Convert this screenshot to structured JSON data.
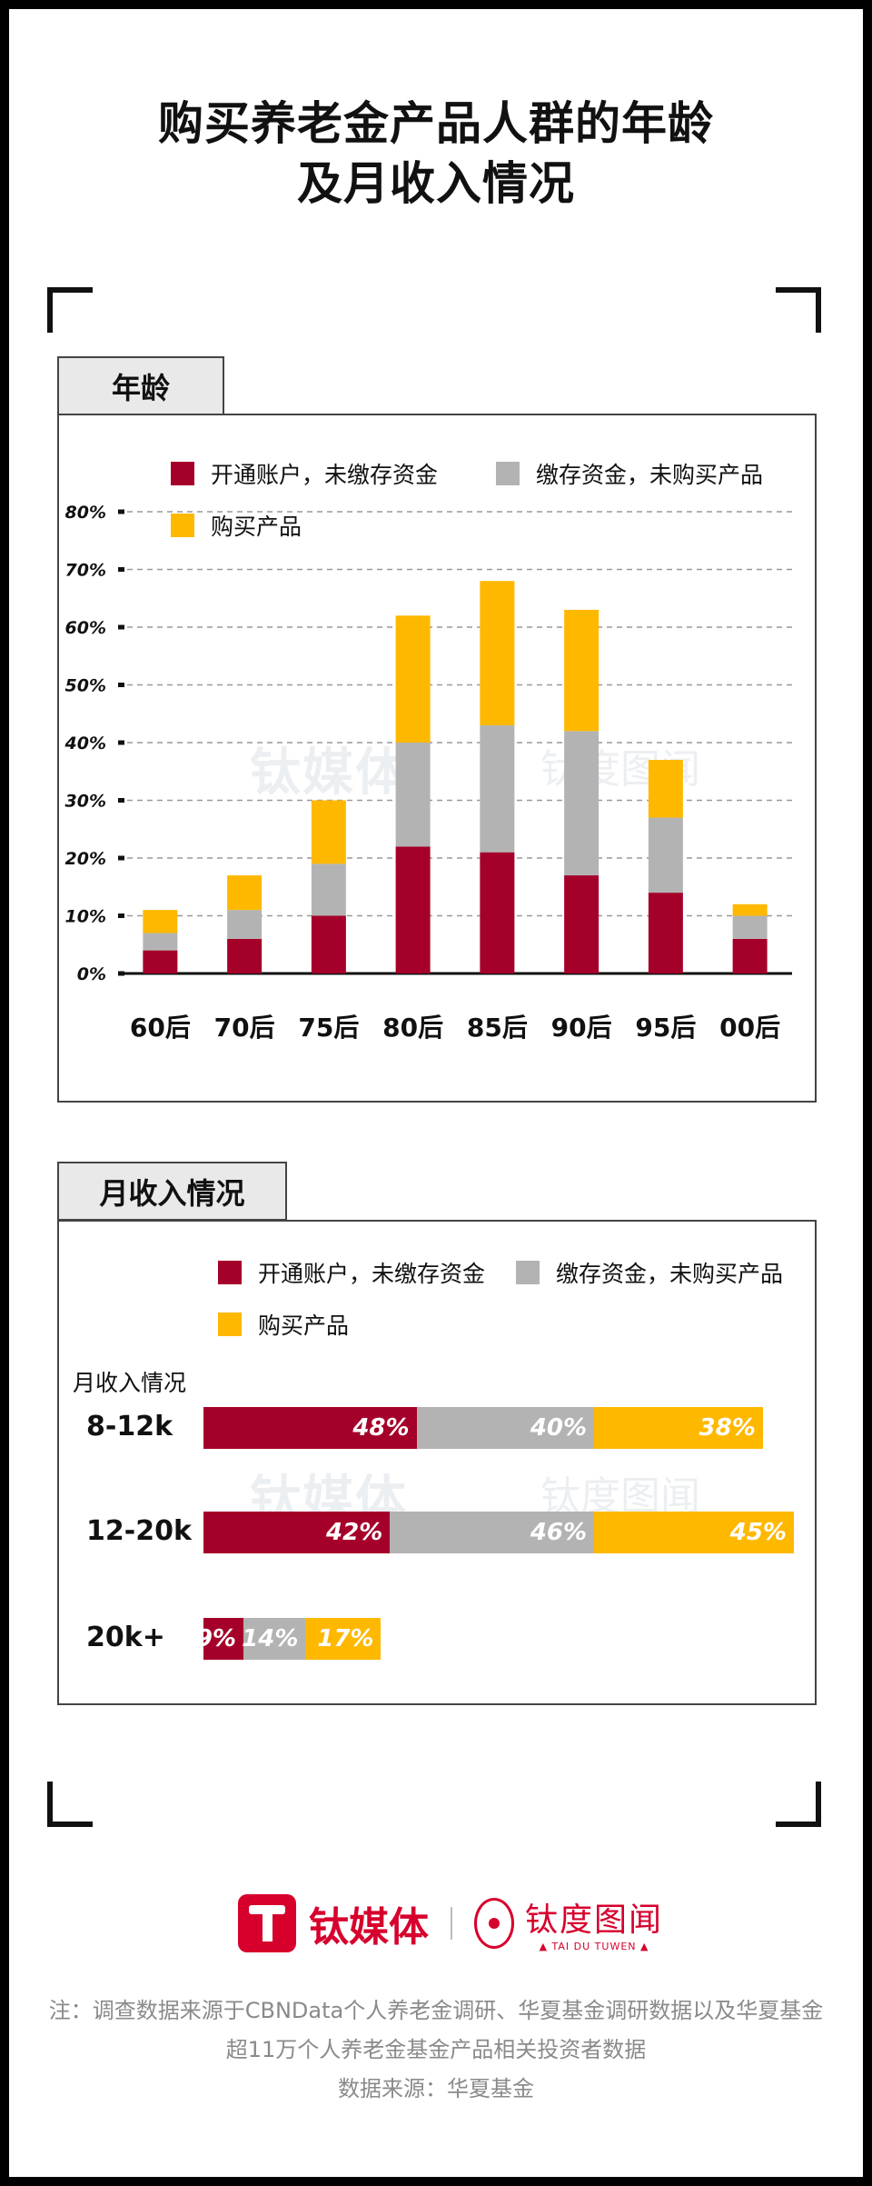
{
  "title_line1": "购买养老金产品人群的年龄",
  "title_line2": "及月收入情况",
  "colors": {
    "red": "#a5002a",
    "gray": "#b3b3b3",
    "yellow": "#ffb800"
  },
  "legend": {
    "red": "开通账户，未缴存资金",
    "gray": "缴存资金，未购买产品",
    "yellow": "购买产品"
  },
  "watermark": {
    "brand": "钛媒体",
    "partner": "钛度图闻"
  },
  "age_section": {
    "tab_label": "年龄"
  },
  "income_section": {
    "tab_label": "月收入情况",
    "axis_label": "月收入情况"
  },
  "chart_data": [
    {
      "type": "bar",
      "stacked": true,
      "categories": [
        "60后",
        "70后",
        "75后",
        "80后",
        "85后",
        "90后",
        "95后",
        "00后"
      ],
      "series": [
        {
          "name": "开通账户，未缴存资金",
          "values": [
            4,
            6,
            10,
            22,
            21,
            17,
            14,
            6
          ]
        },
        {
          "name": "缴存资金，未购买产品",
          "values": [
            3,
            5,
            9,
            18,
            22,
            25,
            13,
            4
          ]
        },
        {
          "name": "购买产品",
          "values": [
            4,
            6,
            11,
            22,
            25,
            21,
            10,
            2
          ]
        }
      ],
      "ylim": [
        0,
        80
      ],
      "yticks": [
        "0%",
        "10%",
        "20%",
        "30%",
        "40%",
        "50%",
        "60%",
        "70%",
        "80%"
      ],
      "grid": true,
      "legend_position": "top"
    },
    {
      "type": "bar",
      "orientation": "horizontal",
      "stacked": true,
      "ylabel": "月收入情况",
      "categories": [
        "8-12k",
        "12-20k",
        "20k+"
      ],
      "series": [
        {
          "name": "开通账户，未缴存资金",
          "values": [
            48,
            42,
            9
          ],
          "labels": [
            "48%",
            "42%",
            "9%"
          ]
        },
        {
          "name": "缴存资金，未购买产品",
          "values": [
            40,
            46,
            14
          ],
          "labels": [
            "40%",
            "46%",
            "14%"
          ]
        },
        {
          "name": "购买产品",
          "values": [
            38,
            45,
            17
          ],
          "labels": [
            "38%",
            "45%",
            "17%"
          ]
        }
      ],
      "legend_position": "top"
    }
  ],
  "footer": {
    "brand": "钛媒体",
    "partner": "钛度图闻",
    "partner_sub": "▲ TAI DU TUWEN ▲",
    "note_line1": "注：调查数据来源于CBNData个人养老金调研、华夏基金调研数据以及华夏基金",
    "note_line2": "超11万个人养老金基金产品相关投资者数据",
    "source": "数据来源：华夏基金"
  }
}
